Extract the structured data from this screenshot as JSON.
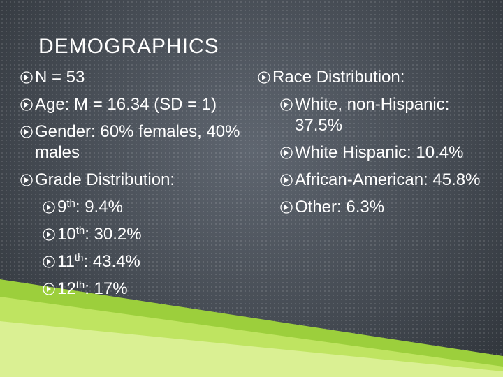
{
  "title": "DEMOGRAPHICS",
  "left": [
    {
      "text": "N = 53"
    },
    {
      "text": "Age: M = 16.34 (SD = 1)"
    },
    {
      "text": "Gender: 60% females, 40% males"
    },
    {
      "text": "Grade Distribution:",
      "items": [
        {
          "grade": "9",
          "suffix": "th",
          "rest": ": 9.4%"
        },
        {
          "grade": "10",
          "suffix": "th",
          "rest": ": 30.2%"
        },
        {
          "grade": "11",
          "suffix": "th",
          "rest": ": 43.4%"
        },
        {
          "grade": "12",
          "suffix": "th",
          "rest": ": 17%"
        }
      ]
    }
  ],
  "right": {
    "text": "Race Distribution:",
    "items": [
      "White, non-Hispanic: 37.5%",
      "White Hispanic: 10.4%",
      "African-American: 45.8%",
      "Other: 6.3%"
    ]
  }
}
